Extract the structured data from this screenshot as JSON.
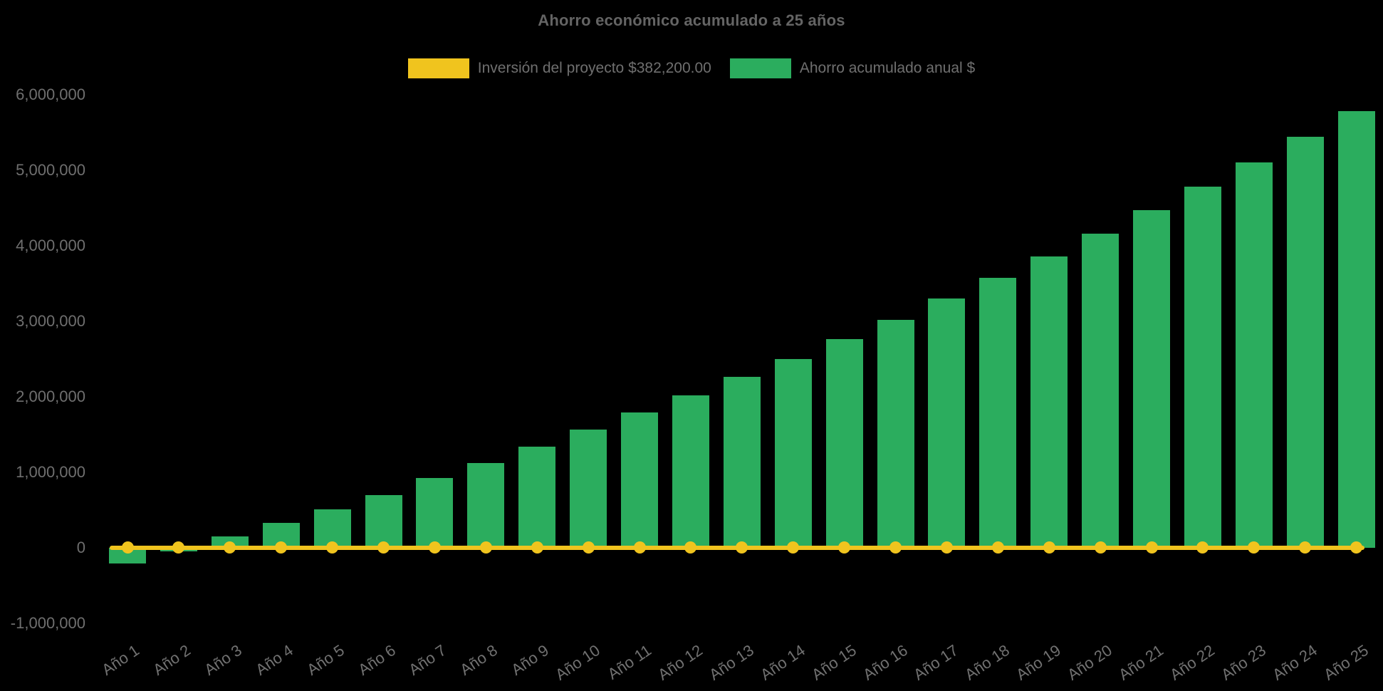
{
  "title": {
    "text": "Ahorro económico acumulado a 25 años"
  },
  "legend": {
    "investment": {
      "label": "Inversión del proyecto $382,200.00",
      "color": "#f0c41e"
    },
    "savings": {
      "label": "Ahorro acumulado anual $",
      "color": "#2bad5e"
    }
  },
  "colors": {
    "background": "#000000",
    "bar_green": "#2bad5e",
    "line_yellow": "#f0c41e",
    "text_gray": "#6f6f6f"
  },
  "chart_data": {
    "type": "bar",
    "title": "Ahorro económico acumulado a 25 años",
    "categories": [
      "Año 1",
      "Año 2",
      "Año 3",
      "Año 4",
      "Año 5",
      "Año 6",
      "Año 7",
      "Año 8",
      "Año 9",
      "Año 10",
      "Año 11",
      "Año 12",
      "Año 13",
      "Año 14",
      "Año 15",
      "Año 16",
      "Año 17",
      "Año 18",
      "Año 19",
      "Año 20",
      "Año 21",
      "Año 22",
      "Año 23",
      "Año 24",
      "Año 25"
    ],
    "series": [
      {
        "name": "Ahorro acumulado anual $",
        "type": "bar",
        "color": "#2bad5e",
        "values": [
          -210000,
          -50000,
          150000,
          330000,
          510000,
          700000,
          920000,
          1125000,
          1340000,
          1565000,
          1790000,
          2020000,
          2260000,
          2500000,
          2760000,
          3020000,
          3300000,
          3580000,
          3860000,
          4160000,
          4470000,
          4780000,
          5100000,
          5440000,
          5780000
        ]
      },
      {
        "name": "Inversión del proyecto $382,200.00",
        "type": "line",
        "color": "#f0c41e",
        "marker": "circle",
        "note": "flat reference line with round markers drawn at the zero baseline",
        "investment_value_text": "$382,200.00",
        "values": [
          0,
          0,
          0,
          0,
          0,
          0,
          0,
          0,
          0,
          0,
          0,
          0,
          0,
          0,
          0,
          0,
          0,
          0,
          0,
          0,
          0,
          0,
          0,
          0,
          0
        ]
      }
    ],
    "y_axis": {
      "ticks": [
        {
          "label": "6,000,000",
          "value": 6000000
        },
        {
          "label": "5,000,000",
          "value": 5000000
        },
        {
          "label": "4,000,000",
          "value": 4000000
        },
        {
          "label": "3,000,000",
          "value": 3000000
        },
        {
          "label": "2,000,000",
          "value": 2000000
        },
        {
          "label": "1,000,000",
          "value": 1000000
        },
        {
          "label": "0",
          "value": 0
        },
        {
          "label": "-1,000,000",
          "value": -1000000
        }
      ],
      "range": [
        -1000000,
        6000000
      ]
    },
    "x_axis": {
      "label_rotation_deg": -34
    },
    "grid": false,
    "legend_position": "top"
  }
}
